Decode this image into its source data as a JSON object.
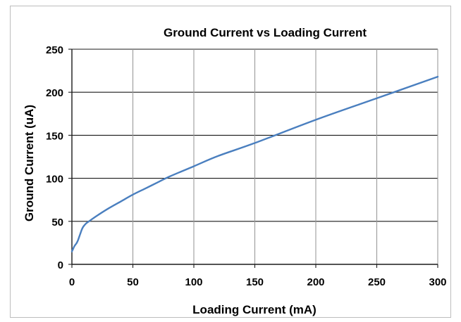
{
  "chart_data": {
    "type": "line",
    "title": "Ground Current vs  Loading Current",
    "xlabel": "Loading Current (mA)",
    "ylabel": "Ground Current  (uA)",
    "xlim": [
      0,
      300
    ],
    "ylim": [
      0,
      250
    ],
    "xticks": [
      0,
      50,
      100,
      150,
      200,
      250,
      300
    ],
    "yticks": [
      0,
      50,
      100,
      150,
      200,
      250
    ],
    "grid": true,
    "line_color": "#4a7fbf",
    "series": [
      {
        "x": [
          0,
          1,
          2,
          3,
          4,
          5,
          6,
          7,
          8,
          9,
          10,
          12,
          15,
          20,
          30,
          40,
          50,
          60,
          70,
          80,
          100,
          120,
          150,
          200,
          250,
          300
        ],
        "values": [
          15,
          18,
          21,
          23,
          25,
          28,
          32,
          36,
          40,
          43,
          45,
          48,
          51,
          56,
          65,
          73,
          81,
          88,
          95,
          102,
          114,
          126,
          141,
          168,
          193,
          218
        ]
      }
    ]
  }
}
